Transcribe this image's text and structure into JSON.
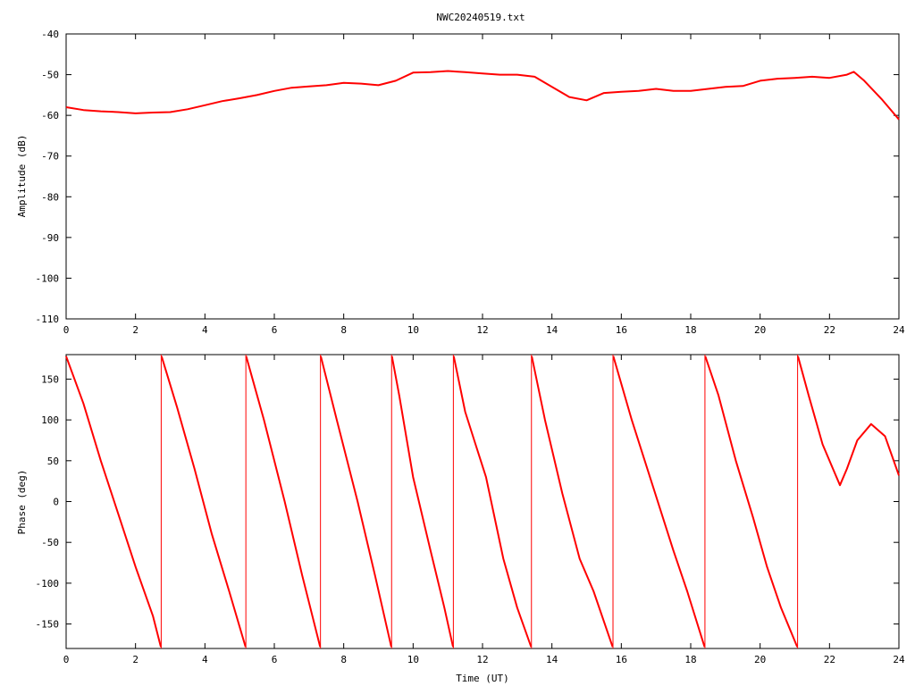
{
  "chart_data": [
    {
      "type": "line",
      "title": "NWC20240519.txt",
      "xlabel": "",
      "ylabel": "Amplitude (dB)",
      "xlim": [
        0,
        24
      ],
      "ylim": [
        -110,
        -40
      ],
      "xticks": [
        "0",
        "2",
        "4",
        "6",
        "8",
        "10",
        "12",
        "14",
        "16",
        "18",
        "20",
        "22",
        "24"
      ],
      "yticks": [
        "-110",
        "-100",
        "-90",
        "-80",
        "-70",
        "-60",
        "-50",
        "-40"
      ],
      "grid": false,
      "color": "#ff0000",
      "x": [
        0,
        0.5,
        1,
        1.5,
        2,
        2.5,
        3,
        3.5,
        4,
        4.5,
        5,
        5.5,
        6,
        6.5,
        7,
        7.5,
        8,
        8.5,
        9,
        9.5,
        10,
        10.5,
        11,
        11.5,
        12,
        12.5,
        13,
        13.5,
        14,
        14.5,
        15,
        15.5,
        16,
        16.5,
        17,
        17.5,
        18,
        18.5,
        19,
        19.5,
        20,
        20.5,
        21,
        21.5,
        22,
        22.5,
        22.7,
        23,
        23.5,
        24
      ],
      "y": [
        -58,
        -58.7,
        -59,
        -59.2,
        -59.5,
        -59.3,
        -59.2,
        -58.5,
        -57.5,
        -56.5,
        -55.8,
        -55,
        -54,
        -53.2,
        -52.9,
        -52.6,
        -52,
        -52.2,
        -52.6,
        -51.5,
        -49.5,
        -49.4,
        -49.1,
        -49.4,
        -49.7,
        -50,
        -50,
        -50.5,
        -53,
        -55.5,
        -56.3,
        -54.5,
        -54.2,
        -54,
        -53.5,
        -54,
        -54,
        -53.5,
        -53,
        -52.8,
        -51.5,
        -51,
        -50.8,
        -50.5,
        -50.8,
        -50,
        -49.3,
        -51.5,
        -56,
        -61
      ]
    },
    {
      "type": "line",
      "title": "",
      "xlabel": "Time (UT)",
      "ylabel": "Phase (deg)",
      "xlim": [
        0,
        24
      ],
      "ylim": [
        -180,
        180
      ],
      "xticks": [
        "0",
        "2",
        "4",
        "6",
        "8",
        "10",
        "12",
        "14",
        "16",
        "18",
        "20",
        "22",
        "24"
      ],
      "yticks": [
        "-150",
        "-100",
        "-50",
        "0",
        "50",
        "100",
        "150"
      ],
      "grid": false,
      "color": "#ff0000",
      "segments": [
        {
          "x": [
            0,
            0.5,
            1,
            1.5,
            2,
            2.5,
            2.73
          ],
          "y": [
            178,
            120,
            50,
            -15,
            -80,
            -140,
            -178
          ]
        },
        {
          "x": [
            2.75,
            3.2,
            3.7,
            4.2,
            4.7,
            5.17
          ],
          "y": [
            178,
            115,
            40,
            -40,
            -110,
            -178
          ]
        },
        {
          "x": [
            5.19,
            5.7,
            6.3,
            6.8,
            7.32
          ],
          "y": [
            178,
            100,
            0,
            -90,
            -178
          ]
        },
        {
          "x": [
            7.34,
            7.8,
            8.4,
            8.9,
            9.37
          ],
          "y": [
            178,
            100,
            0,
            -90,
            -178
          ]
        },
        {
          "x": [
            9.39,
            9.6,
            10,
            10.5,
            10.9,
            11.15
          ],
          "y": [
            178,
            130,
            30,
            -60,
            -130,
            -178
          ]
        },
        {
          "x": [
            11.17,
            11.5,
            11.8,
            12.1,
            12.6,
            13.0,
            13.4
          ],
          "y": [
            178,
            110,
            70,
            30,
            -70,
            -130,
            -178
          ]
        },
        {
          "x": [
            13.42,
            13.8,
            14.3,
            14.8,
            15.2,
            15.75
          ],
          "y": [
            178,
            100,
            10,
            -70,
            -110,
            -178
          ]
        },
        {
          "x": [
            15.77,
            16.3,
            16.9,
            17.5,
            17.9,
            18.4
          ],
          "y": [
            178,
            100,
            20,
            -60,
            -110,
            -178
          ]
        },
        {
          "x": [
            18.42,
            18.8,
            19.3,
            19.8,
            20.2,
            20.6,
            21.07
          ],
          "y": [
            178,
            130,
            50,
            -20,
            -80,
            -130,
            -178
          ]
        },
        {
          "x": [
            21.09,
            21.4,
            21.8,
            22.1,
            22.3,
            22.5,
            22.8,
            23.2,
            23.6,
            24.0
          ],
          "y": [
            178,
            130,
            70,
            40,
            20,
            40,
            75,
            95,
            80,
            32
          ]
        }
      ],
      "wrap_x": [
        2.74,
        5.18,
        7.33,
        9.38,
        11.16,
        13.41,
        15.76,
        18.41,
        21.08
      ]
    }
  ]
}
